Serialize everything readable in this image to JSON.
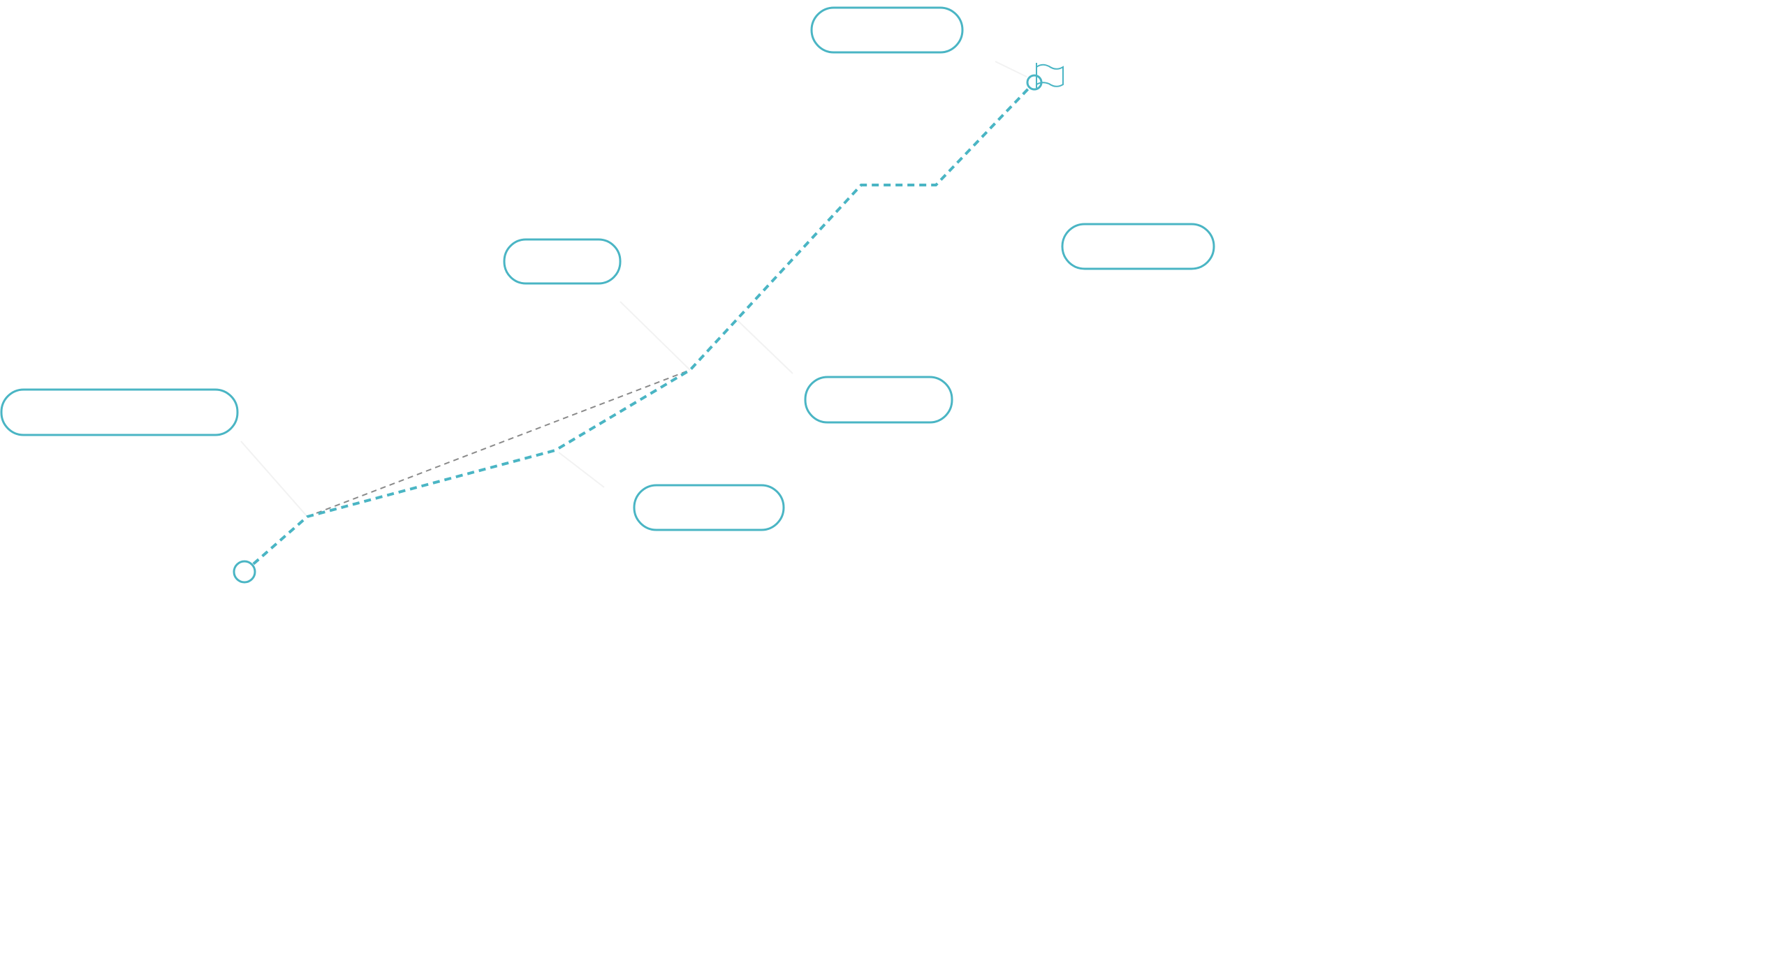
{
  "colors": {
    "accent": "#4ab5c4",
    "secondary_path": "#8a8a8a",
    "faint_connector": "#f2f2f2",
    "label": "#fafafa"
  },
  "nodes": [
    {
      "id": "n1",
      "label": ""
    },
    {
      "id": "n2",
      "label": ""
    },
    {
      "id": "n3",
      "label": ""
    },
    {
      "id": "n4",
      "label": ""
    },
    {
      "id": "n5",
      "label": ""
    },
    {
      "id": "n6",
      "label": ""
    }
  ],
  "markers": {
    "start_icon": "circle-icon",
    "end_icon": "flag-icon"
  }
}
